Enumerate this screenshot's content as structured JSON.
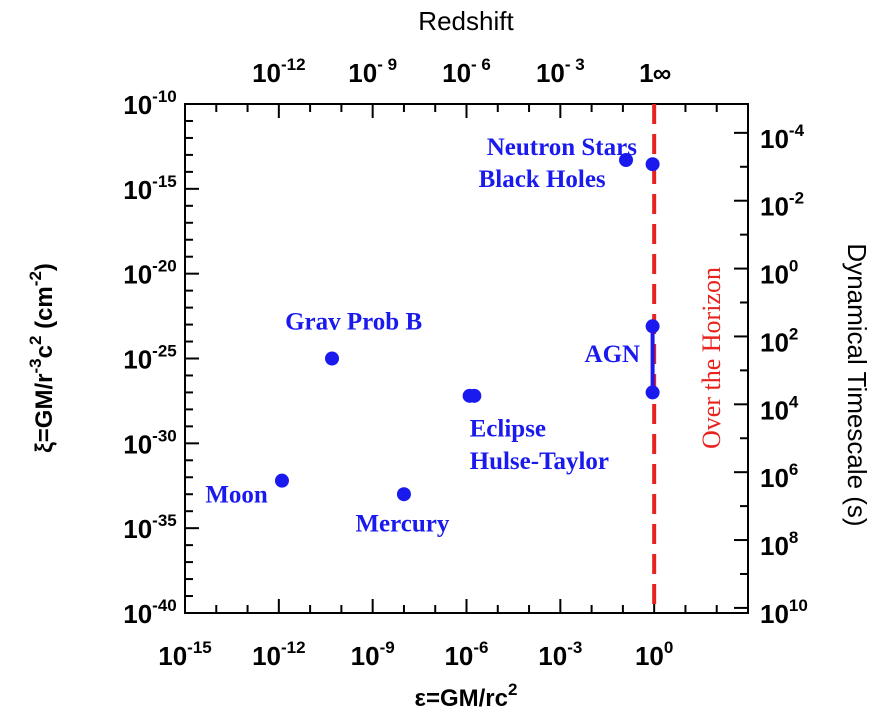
{
  "chart_data": {
    "type": "scatter",
    "x_axis": {
      "label_main": "ε=GM/rc",
      "label_sup": "2",
      "scale": "log",
      "range_exp": [
        -15,
        3
      ],
      "ticks": [
        {
          "exp": -15,
          "base": "10",
          "sup": "-15"
        },
        {
          "exp": -12,
          "base": "10",
          "sup": "-12"
        },
        {
          "exp": -9,
          "base": "10",
          "sup": "-9"
        },
        {
          "exp": -6,
          "base": "10",
          "sup": "-6"
        },
        {
          "exp": -3,
          "base": "10",
          "sup": "-3"
        },
        {
          "exp": 0,
          "base": "10",
          "sup": "0"
        }
      ]
    },
    "y_axis": {
      "label_parts": [
        "ξ",
        "=GM/r",
        "-3",
        "c",
        "2",
        " (cm",
        "-2",
        ")"
      ],
      "scale": "log",
      "range_exp": [
        -40,
        -10
      ],
      "ticks": [
        {
          "exp": -10,
          "base": "10",
          "sup": "-10"
        },
        {
          "exp": -15,
          "base": "10",
          "sup": "-15"
        },
        {
          "exp": -20,
          "base": "10",
          "sup": "-20"
        },
        {
          "exp": -25,
          "base": "10",
          "sup": "-25"
        },
        {
          "exp": -30,
          "base": "10",
          "sup": "-30"
        },
        {
          "exp": -35,
          "base": "10",
          "sup": "-35"
        },
        {
          "exp": -40,
          "base": "10",
          "sup": "-40"
        }
      ]
    },
    "top_axis": {
      "label": "Redshift",
      "ticks": [
        {
          "x_exp": -12,
          "base": "10",
          "sup": "-12"
        },
        {
          "x_exp": -9,
          "base": "10",
          "sup": "- 9"
        },
        {
          "x_exp": -6,
          "base": "10",
          "sup": "- 6"
        },
        {
          "x_exp": -3,
          "base": "10",
          "sup": "- 3"
        },
        {
          "x_exp": -0.25,
          "base": "1",
          "sup": ""
        },
        {
          "x_exp": 0.25,
          "base": "∞",
          "sup": ""
        }
      ]
    },
    "right_axis": {
      "label": "Dynamical Timescale  (s)",
      "ticks": [
        {
          "y_exp": -11.7,
          "base": "10",
          "sup": "-4"
        },
        {
          "y_exp": -15.7,
          "base": "10",
          "sup": "-2"
        },
        {
          "y_exp": -19.7,
          "base": "10",
          "sup": "0"
        },
        {
          "y_exp": -23.7,
          "base": "10",
          "sup": "2"
        },
        {
          "y_exp": -27.7,
          "base": "10",
          "sup": "4"
        },
        {
          "y_exp": -31.7,
          "base": "10",
          "sup": "6"
        },
        {
          "y_exp": -35.7,
          "base": "10",
          "sup": "8"
        },
        {
          "y_exp": -39.7,
          "base": "10",
          "sup": "10"
        }
      ]
    },
    "points": [
      {
        "x_exp": -11.9,
        "y_exp": -32.2
      },
      {
        "x_exp": -10.3,
        "y_exp": -25.0
      },
      {
        "x_exp": -8.0,
        "y_exp": -33.0
      },
      {
        "x_exp": -5.9,
        "y_exp": -27.2
      },
      {
        "x_exp": -5.75,
        "y_exp": -27.2
      },
      {
        "x_exp": -0.9,
        "y_exp": -13.3
      },
      {
        "x_exp": -0.05,
        "y_exp": -13.55
      },
      {
        "x_exp": -0.05,
        "y_exp": -23.1
      },
      {
        "x_exp": -0.05,
        "y_exp": -27.0
      }
    ],
    "segments": [
      {
        "x_exp": -0.05,
        "y1_exp": -23.1,
        "y2_exp": -27.0
      }
    ],
    "annotations": [
      {
        "text": "Neutron Stars",
        "x_exp": -0.55,
        "y_exp": -13.0,
        "anchor": "end"
      },
      {
        "text": "Black Holes",
        "x_exp": -1.55,
        "y_exp": -14.9,
        "anchor": "end"
      },
      {
        "text": "Grav Prob B",
        "x_exp": -11.8,
        "y_exp": -23.3,
        "anchor": "start"
      },
      {
        "text": "AGN",
        "x_exp": -0.45,
        "y_exp": -25.2,
        "anchor": "end"
      },
      {
        "text": "Eclipse",
        "x_exp": -5.9,
        "y_exp": -29.6,
        "anchor": "start"
      },
      {
        "text": "Hulse-Taylor",
        "x_exp": -5.9,
        "y_exp": -31.5,
        "anchor": "start"
      },
      {
        "text": "Moon",
        "x_exp": -14.35,
        "y_exp": -33.5,
        "anchor": "start"
      },
      {
        "text": "Mercury",
        "x_exp": -9.55,
        "y_exp": -35.2,
        "anchor": "start"
      }
    ],
    "horizon": {
      "x_exp": 0,
      "label": "Over the Horizon",
      "color": "#e8231f"
    },
    "marker_color": "#1a1aee"
  }
}
